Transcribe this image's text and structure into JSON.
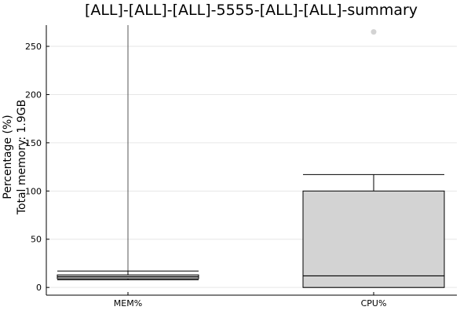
{
  "chart_data": {
    "type": "box",
    "title": "[ALL]-[ALL]-[ALL]-5555-[ALL]-[ALL]-summary",
    "ylabel": [
      "Percentage (%)",
      "Total memory: 1.9GB"
    ],
    "categories": [
      "MEM%",
      "CPU%"
    ],
    "y_ticks": [
      0,
      50,
      100,
      150,
      200,
      250
    ],
    "ylim": [
      -8,
      272
    ],
    "grid": true,
    "legend": "none",
    "series": [
      {
        "category": "MEM%",
        "whisker_low": 8,
        "q1": 9,
        "median": 11,
        "q3": 13,
        "whisker_high": 17,
        "outlier_line_top": 272
      },
      {
        "category": "CPU%",
        "whisker_low": 0,
        "q1": 0,
        "median": 12,
        "q3": 100,
        "whisker_high": 117,
        "outliers": [
          265
        ]
      }
    ],
    "colors": {
      "box_fill": "#d3d3d3",
      "outlier": "#d3d3d3",
      "stroke": "#000000",
      "grid": "#e6e6e6"
    }
  }
}
